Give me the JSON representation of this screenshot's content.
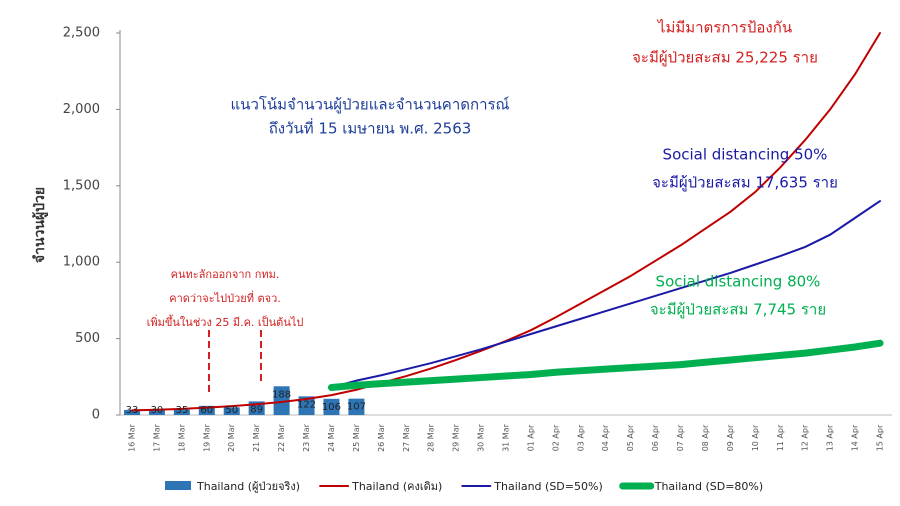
{
  "chart_data": {
    "type": "bar-line",
    "ylabel": "จำนวนผู้ป่วย",
    "categories": [
      "16 Mar",
      "17 Mar",
      "18 Mar",
      "19 Mar",
      "20 Mar",
      "21 Mar",
      "22 Mar",
      "23 Mar",
      "24 Mar",
      "25 Mar",
      "26 Mar",
      "27 Mar",
      "28 Mar",
      "29 Mar",
      "30 Mar",
      "31 Mar",
      "01 Apr",
      "02 Apr",
      "03 Apr",
      "04 Apr",
      "05 Apr",
      "06 Apr",
      "07 Apr",
      "08 Apr",
      "09 Apr",
      "10 Apr",
      "11 Apr",
      "12 Apr",
      "13 Apr",
      "14 Apr",
      "15 Apr"
    ],
    "ylim": [
      0,
      2500
    ],
    "yticks": [
      0,
      {
        "value": 500,
        "label": "500"
      },
      {
        "value": 1000,
        "label": "1,000"
      },
      {
        "value": 1500,
        "label": "1,500"
      },
      {
        "value": 2000,
        "label": "2,000"
      },
      {
        "value": 2500,
        "label": "2,500"
      }
    ],
    "series": [
      {
        "name": "Thailand (ผู้ป่วยจริง)",
        "kind": "bar",
        "color": "#2e75b6",
        "values": [
          33,
          30,
          35,
          60,
          50,
          89,
          188,
          122,
          106,
          107,
          null,
          null,
          null,
          null,
          null,
          null,
          null,
          null,
          null,
          null,
          null,
          null,
          null,
          null,
          null,
          null,
          null,
          null,
          null,
          null,
          null
        ]
      },
      {
        "name": "Thailand (คงเดิม)",
        "kind": "line",
        "color": "#c00000",
        "width": 2,
        "values": [
          30,
          34,
          40,
          48,
          58,
          70,
          85,
          105,
          130,
          165,
          210,
          255,
          305,
          360,
          420,
          485,
          555,
          640,
          730,
          820,
          910,
          1010,
          1110,
          1220,
          1330,
          1460,
          1620,
          1800,
          2000,
          2230,
          2500
        ]
      },
      {
        "name": "Thailand (SD=50%)",
        "kind": "line",
        "color": "#1a1aa6",
        "width": 2,
        "values": [
          null,
          null,
          null,
          null,
          null,
          null,
          null,
          null,
          180,
          225,
          260,
          300,
          340,
          385,
          430,
          480,
          530,
          580,
          630,
          680,
          730,
          780,
          830,
          880,
          930,
          985,
          1040,
          1100,
          1180,
          1290,
          1400
        ]
      },
      {
        "name": "Thailand (SD=80%)",
        "kind": "line",
        "color": "#00b050",
        "width": 7,
        "values": [
          null,
          null,
          null,
          null,
          null,
          null,
          null,
          null,
          180,
          195,
          205,
          215,
          225,
          235,
          245,
          255,
          265,
          280,
          290,
          300,
          310,
          320,
          330,
          345,
          360,
          375,
          390,
          405,
          425,
          445,
          470
        ]
      }
    ],
    "annotations": [
      {
        "lines": [
          "แนวโน้มจำนวนผู้ป่วยและจำนวนคาดการณ์",
          "ถึงวันที่ 15 เมษายน พ.ศ. 2563"
        ],
        "color": "#1f3e9a"
      },
      {
        "lines": [
          "ไม่มีมาตรการป้องกัน",
          "จะมีผู้ป่วยสะสม 25,225 ราย"
        ],
        "color": "#d42020"
      },
      {
        "lines": [
          "Social distancing 50%",
          "จะมีผู้ป่วยสะสม 17,635 ราย"
        ],
        "color": "#1a1aa6"
      },
      {
        "lines": [
          "Social distancing 80%",
          "จะมีผู้ป่วยสะสม 7,745 ราย"
        ],
        "color": "#00b050"
      },
      {
        "lines": [
          "คนทะลักออกจาก กทม.",
          "คาดว่าจะไปป่วยที่ ตจว.",
          "เพิ่มขึ้นในช่วง  25 มี.ค. เป็นต้นไป"
        ],
        "color": "#d42020"
      }
    ]
  }
}
